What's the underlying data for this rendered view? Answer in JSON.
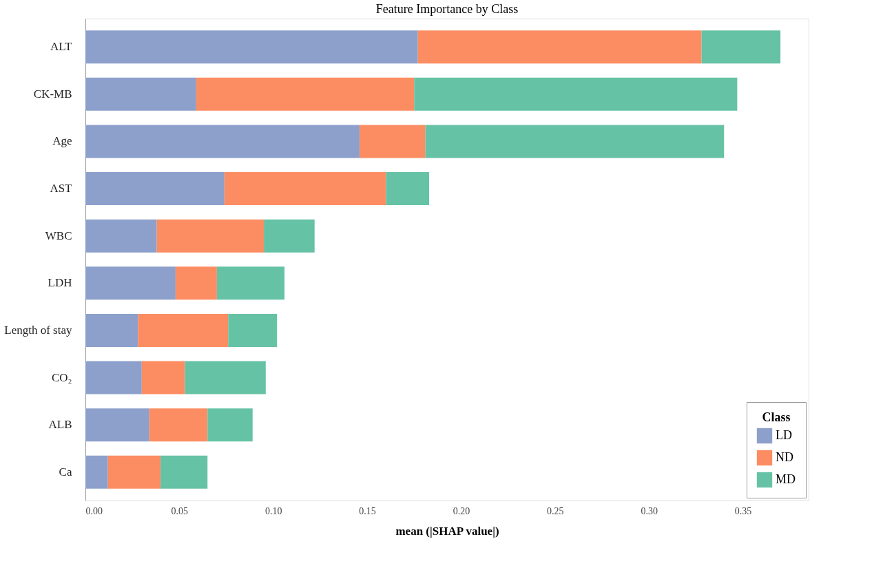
{
  "chart_data": {
    "type": "bar",
    "orientation": "horizontal",
    "stacked": true,
    "title": "Feature Importance by Class",
    "xlabel": "mean (|SHAP value|)",
    "legend_title": "Class",
    "legend": "bottom right",
    "grid": false,
    "categories": [
      "ALT",
      "CK-MB",
      "Age",
      "AST",
      "WBC",
      "LDH",
      "Length of stay",
      "CO₂",
      "ALB",
      "Ca"
    ],
    "series": [
      {
        "name": "LD",
        "color": "#8da0cb",
        "values": [
          0.177,
          0.059,
          0.146,
          0.074,
          0.038,
          0.048,
          0.028,
          0.03,
          0.034,
          0.012
        ]
      },
      {
        "name": "ND",
        "color": "#fc8d62",
        "values": [
          0.151,
          0.116,
          0.035,
          0.086,
          0.057,
          0.022,
          0.048,
          0.023,
          0.031,
          0.028
        ]
      },
      {
        "name": "MD",
        "color": "#66c2a5",
        "values": [
          0.042,
          0.172,
          0.159,
          0.023,
          0.027,
          0.036,
          0.026,
          0.043,
          0.024,
          0.025
        ]
      }
    ],
    "xlim": [
      0,
      0.385
    ],
    "xticks": [
      {
        "value": 0,
        "label": "0.00"
      },
      {
        "value": 0.05,
        "label": "0.05"
      },
      {
        "value": 0.1,
        "label": "0.10"
      },
      {
        "value": 0.15,
        "label": "0.15"
      },
      {
        "value": 0.2,
        "label": "0.20"
      },
      {
        "value": 0.25,
        "label": "0.25"
      },
      {
        "value": 0.3,
        "label": "0.30"
      },
      {
        "value": 0.35,
        "label": "0.35"
      }
    ]
  }
}
